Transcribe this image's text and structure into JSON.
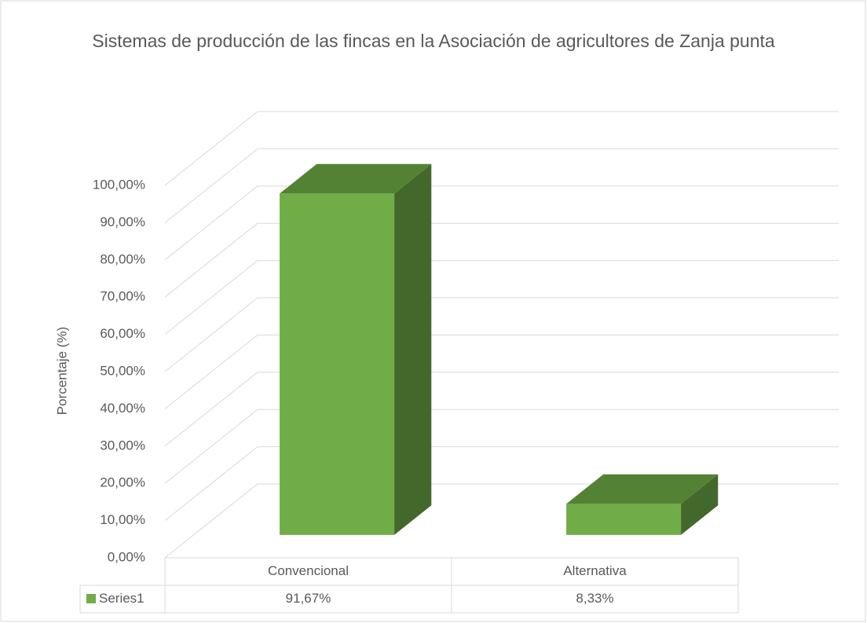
{
  "chart_data": {
    "type": "bar3d",
    "title": "Sistemas de producción de las fincas en la Asociación de agricultores de Zanja punta",
    "y_label": "Porcentaje (%)",
    "categories": [
      "Convencional",
      "Alternativa"
    ],
    "series": [
      {
        "name": "Series1",
        "color": "#70ad47",
        "values": [
          91.67,
          8.33
        ],
        "value_labels": [
          "91,67%",
          "8,33%"
        ]
      }
    ],
    "ylim": [
      0,
      100
    ],
    "yticks": [
      {
        "value": 0,
        "label": "0,00%"
      },
      {
        "value": 10,
        "label": "10,00%"
      },
      {
        "value": 20,
        "label": "20,00%"
      },
      {
        "value": 30,
        "label": "30,00%"
      },
      {
        "value": 40,
        "label": "40,00%"
      },
      {
        "value": 50,
        "label": "50,00%"
      },
      {
        "value": 60,
        "label": "60,00%"
      },
      {
        "value": 70,
        "label": "70,00%"
      },
      {
        "value": 80,
        "label": "80,00%"
      },
      {
        "value": 90,
        "label": "90,00%"
      },
      {
        "value": 100,
        "label": "100,00%"
      }
    ],
    "grid": true
  }
}
